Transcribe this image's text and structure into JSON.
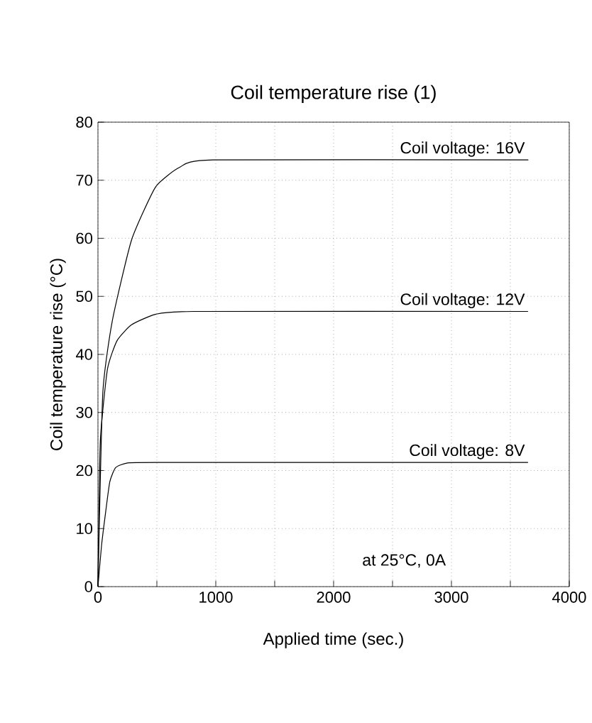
{
  "chart_data": {
    "type": "line",
    "title": "Coil temperature rise (1)",
    "xlabel": "Applied time (sec.)",
    "ylabel": "Coil temperature rise (°C)",
    "xlim": [
      0,
      4000
    ],
    "ylim": [
      0,
      80
    ],
    "xticks": [
      0,
      {
        "value": 500,
        "label": null
      },
      1000,
      {
        "value": 1500,
        "label": null
      },
      2000,
      {
        "value": 2500,
        "label": null
      },
      3000,
      {
        "value": 3500,
        "label": null
      },
      4000
    ],
    "yticks": [
      0,
      10,
      20,
      30,
      40,
      50,
      60,
      70,
      80
    ],
    "grid": true,
    "line_style": "solid",
    "marker": "none",
    "series": [
      {
        "name": "Coil voltage: 16V",
        "color": "#000000",
        "x": [
          0,
          41,
          122,
          285,
          488,
          691,
          976,
          3650
        ],
        "values": [
          0,
          33.3,
          45.8,
          59.7,
          68.8,
          72.2,
          73.5,
          73.5
        ]
      },
      {
        "name": "Coil voltage: 12V",
        "color": "#000000",
        "x": [
          0,
          20,
          81,
          163,
          285,
          488,
          813,
          3650
        ],
        "values": [
          0,
          25,
          37.5,
          42.4,
          45.1,
          46.9,
          47.4,
          47.4
        ]
      },
      {
        "name": "Coil voltage: 8V",
        "color": "#000000",
        "x": [
          0,
          30,
          60,
          100,
          150,
          250,
          500,
          3650
        ],
        "values": [
          0,
          7,
          12,
          18,
          20.5,
          21.3,
          21.4,
          21.4
        ]
      }
    ],
    "annotations": [
      "at 25°C, 0A"
    ]
  }
}
